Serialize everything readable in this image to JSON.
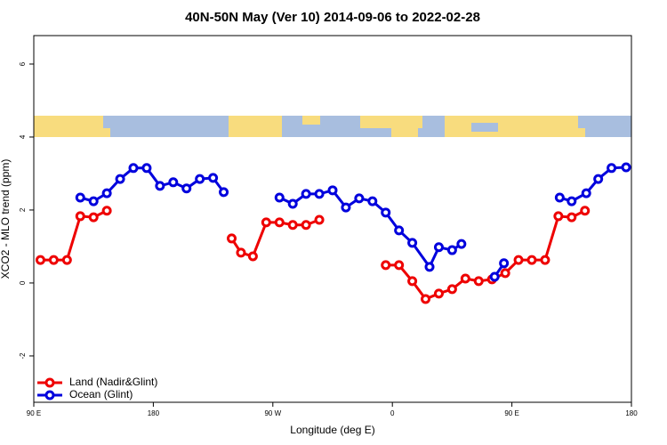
{
  "chart_data": {
    "type": "line",
    "title": "40N-50N May (Ver 10)   2014-09-06 to 2022-02-28",
    "xlabel": "Longitude (deg E)",
    "ylabel": "XCO2 - MLO trend (ppm)",
    "xlim": [
      90,
      540
    ],
    "xticks": [
      {
        "value": 90,
        "label": "90 E"
      },
      180,
      {
        "value": 270,
        "label": "90 W"
      },
      {
        "value": 360,
        "label": "0"
      },
      {
        "value": 450,
        "label": "90 E"
      },
      {
        "value": 540,
        "label": "180"
      }
    ],
    "ylim": [
      -3.27,
      6.78
    ],
    "yticks": [
      -2,
      0,
      2,
      4,
      6
    ],
    "legend": "bottom-left",
    "series": [
      {
        "name": "Land (Nadir&Glint)",
        "color": "#ee0000",
        "x": [
          95,
          105,
          115,
          125,
          135,
          145,
          null,
          239,
          246,
          255,
          265,
          275,
          285,
          295,
          305,
          null,
          355,
          365,
          375,
          385,
          395,
          405,
          415,
          425,
          435,
          445,
          455,
          465,
          475,
          485,
          495,
          505
        ],
        "values": [
          0.63,
          0.63,
          0.63,
          1.83,
          1.8,
          1.98,
          null,
          1.22,
          0.83,
          0.73,
          1.66,
          1.66,
          1.59,
          1.59,
          1.73,
          null,
          0.49,
          0.49,
          0.05,
          -0.44,
          -0.29,
          -0.17,
          0.12,
          0.05,
          0.1,
          0.27,
          0.63,
          0.63,
          0.63,
          1.83,
          1.8,
          1.98
        ]
      },
      {
        "name": "Ocean (Glint)",
        "color": "#0000dd",
        "x": [
          125,
          135,
          145,
          155,
          165,
          175,
          185,
          195,
          205,
          215,
          225,
          233,
          null,
          275,
          285,
          295,
          305,
          315,
          325,
          335,
          345,
          355,
          365,
          375,
          388,
          395,
          405,
          412,
          null,
          437,
          444,
          null,
          486,
          495,
          506,
          515,
          525,
          536
        ],
        "values": [
          2.34,
          2.24,
          2.46,
          2.85,
          3.15,
          3.15,
          2.66,
          2.76,
          2.59,
          2.85,
          2.88,
          2.49,
          null,
          2.34,
          2.17,
          2.44,
          2.44,
          2.54,
          2.07,
          2.32,
          2.24,
          1.93,
          1.44,
          1.1,
          0.44,
          0.98,
          0.9,
          1.07,
          null,
          0.17,
          0.54,
          null,
          2.34,
          2.24,
          2.46,
          2.85,
          3.15,
          3.17
        ]
      }
    ]
  }
}
